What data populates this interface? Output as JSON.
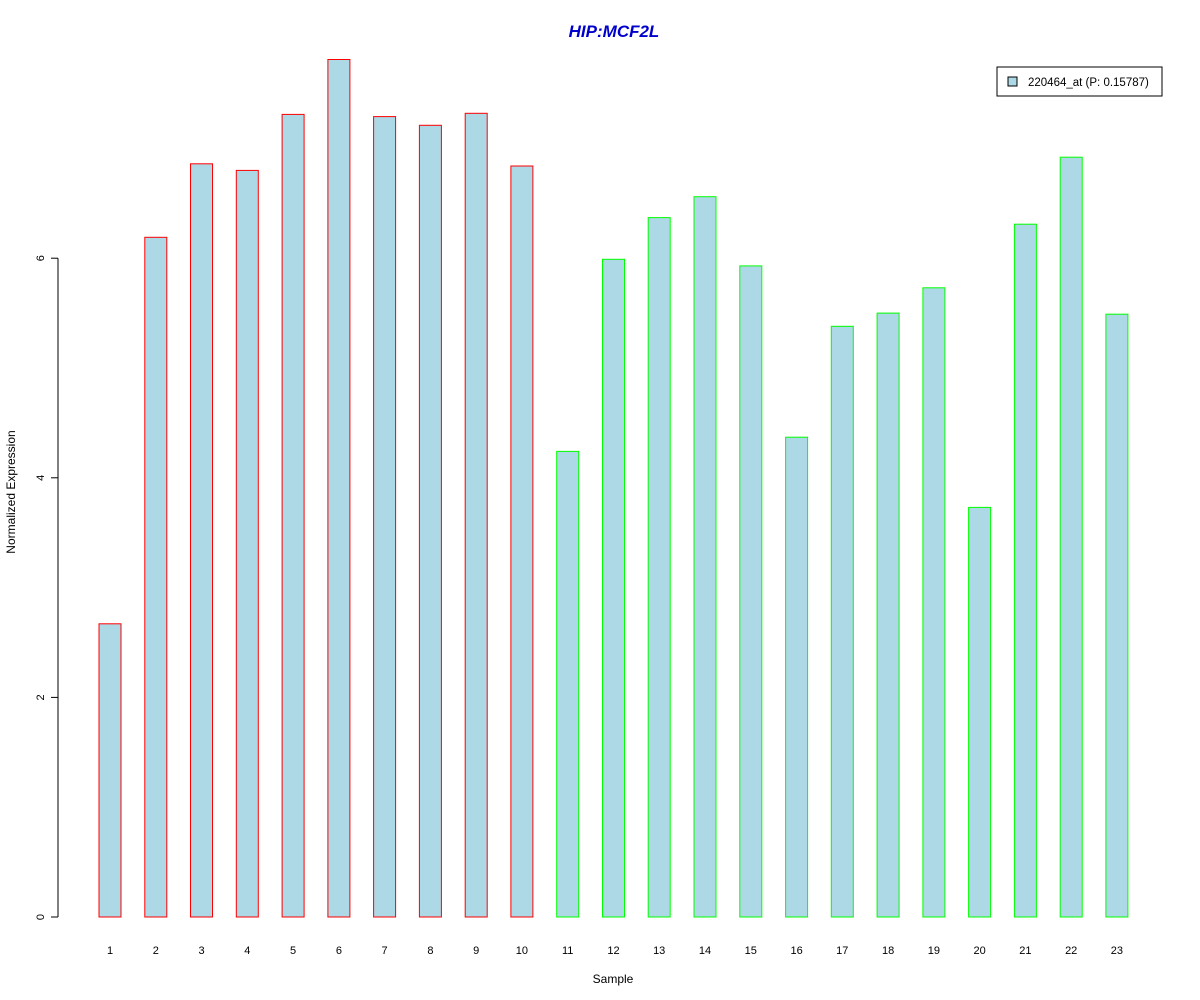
{
  "chart_data": {
    "type": "bar",
    "title": "HIP:MCF2L",
    "xlabel": "Sample",
    "ylabel": "Normalized Expression",
    "ylim": [
      0,
      7.8
    ],
    "yticks": [
      0,
      2,
      4,
      6
    ],
    "categories": [
      "1",
      "2",
      "3",
      "4",
      "5",
      "6",
      "7",
      "8",
      "9",
      "10",
      "11",
      "12",
      "13",
      "14",
      "15",
      "16",
      "17",
      "18",
      "19",
      "20",
      "21",
      "22",
      "23"
    ],
    "series": [
      {
        "name": "220464_at (P: 0.15787)",
        "values": [
          2.67,
          6.19,
          6.86,
          6.8,
          7.31,
          7.81,
          7.29,
          7.21,
          7.32,
          6.84,
          4.24,
          5.99,
          6.37,
          6.56,
          5.93,
          4.37,
          5.38,
          5.5,
          5.73,
          3.73,
          6.31,
          6.92,
          5.49
        ]
      }
    ],
    "bar_groups": [
      {
        "samples": [
          1,
          10
        ],
        "border_color": "#FF0000"
      },
      {
        "samples": [
          11,
          23
        ],
        "border_color": "#00FF00"
      }
    ],
    "fill_color": "#ADD8E6",
    "legend_position": "top-right",
    "grid": false
  }
}
